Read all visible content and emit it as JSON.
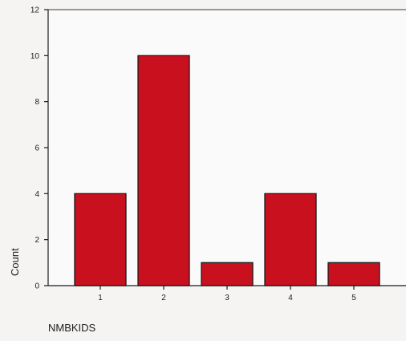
{
  "chart_data": {
    "type": "bar",
    "categories": [
      "1",
      "2",
      "3",
      "4",
      "5"
    ],
    "values": [
      4,
      10,
      1,
      4,
      1
    ],
    "title": "",
    "xlabel": "NMBKIDS",
    "ylabel": "Count",
    "ylim": [
      0,
      12
    ],
    "yticks": [
      0,
      2,
      4,
      6,
      8,
      10,
      12
    ],
    "grid": false,
    "legend": "none",
    "colors": {
      "bar_fill": "#c8101e",
      "bar_stroke": "#1a1a1a",
      "plot_background": "#fafafa",
      "axis": "#1a1a1a"
    }
  }
}
